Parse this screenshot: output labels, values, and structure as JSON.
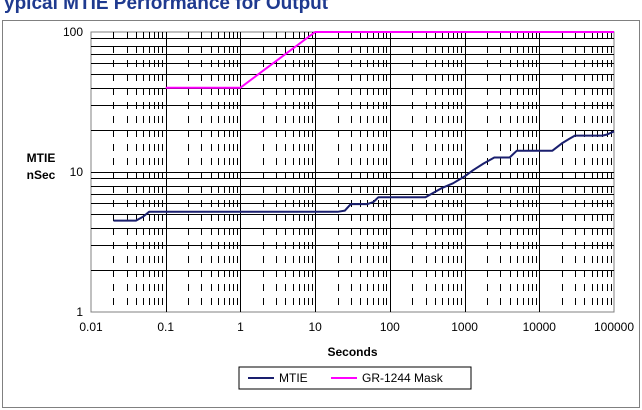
{
  "header": {
    "title": "ypical MTIE Performance for Output"
  },
  "colors": {
    "mtie": "#1a1f6e",
    "mask": "#ff00ff",
    "grid": "#000000"
  },
  "chart_data": {
    "type": "line",
    "title": "",
    "xlabel": "Seconds",
    "ylabel": [
      "MTIE",
      "nSec"
    ],
    "x_scale": "log",
    "y_scale": "log",
    "xlim": [
      0.01,
      100000
    ],
    "ylim": [
      1,
      100
    ],
    "x_tick_labels": [
      "0.01",
      "0.1",
      "1",
      "10",
      "100",
      "1000",
      "10000",
      "100000"
    ],
    "y_tick_labels": [
      "1",
      "10",
      "100"
    ],
    "grid": true,
    "legend_position": "bottom",
    "series": [
      {
        "name": "MTIE",
        "x": [
          0.02,
          0.03,
          0.04,
          0.05,
          0.06,
          0.07,
          0.1,
          1,
          10,
          20,
          25,
          30,
          50,
          60,
          70,
          100,
          300,
          400,
          500,
          700,
          1000,
          1300,
          1800,
          2500,
          3000,
          4000,
          5000,
          6000,
          8000,
          10000,
          15000,
          20000,
          25000,
          30000,
          40000,
          50000,
          60000,
          70000,
          80000,
          100000
        ],
        "values": [
          4.5,
          4.5,
          4.5,
          4.8,
          5.2,
          5.2,
          5.2,
          5.2,
          5.2,
          5.2,
          5.3,
          5.9,
          5.9,
          6.1,
          6.6,
          6.6,
          6.6,
          7.2,
          7.7,
          8.3,
          9.3,
          10.3,
          11.5,
          12.7,
          12.7,
          12.7,
          14.2,
          14.2,
          14.2,
          14.2,
          14.2,
          16.0,
          17.2,
          18.2,
          18.2,
          18.2,
          18.2,
          18.2,
          18.5,
          19.5
        ]
      },
      {
        "name": "GR-1244 Mask",
        "x": [
          0.1,
          1,
          10,
          100000
        ],
        "values": [
          40,
          40,
          100,
          100
        ]
      }
    ]
  }
}
